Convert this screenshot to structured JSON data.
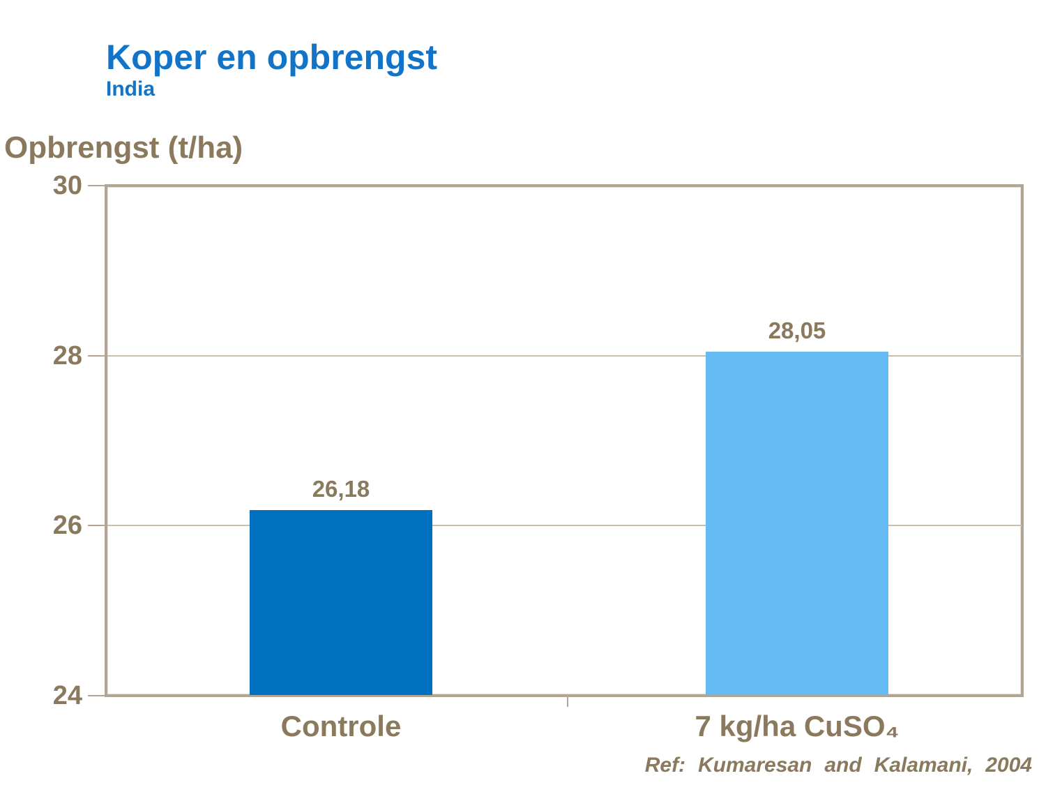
{
  "colors": {
    "title_blue": "#1274C8",
    "text_brown": "#8A795C",
    "axis_taupe": "#B3A595",
    "gridline": "#C9BDB0",
    "bar_dark_blue": "#0070C0",
    "bar_light_blue": "#66BBF5",
    "background": "#FFFFFF"
  },
  "chart_data": {
    "type": "bar",
    "title": "Koper en opbrengst",
    "subtitle": "India",
    "ylabel": "Opbrengst (t/ha)",
    "categories": [
      "Controle",
      "7 kg/ha CuSO₄"
    ],
    "values": [
      26.18,
      28.05
    ],
    "value_labels": [
      "26,18",
      "28,05"
    ],
    "ylim": [
      24,
      30
    ],
    "yticks": [
      24,
      26,
      28,
      30
    ],
    "ytick_labels": [
      "24",
      "26",
      "28",
      "30"
    ],
    "gridlines": [
      26,
      28
    ],
    "grid": "horizontal",
    "legend": "none",
    "bar_colors": [
      "#0070C0",
      "#66BBF5"
    ],
    "reference": "Ref: Kumaresan and Kalamani, 2004"
  }
}
